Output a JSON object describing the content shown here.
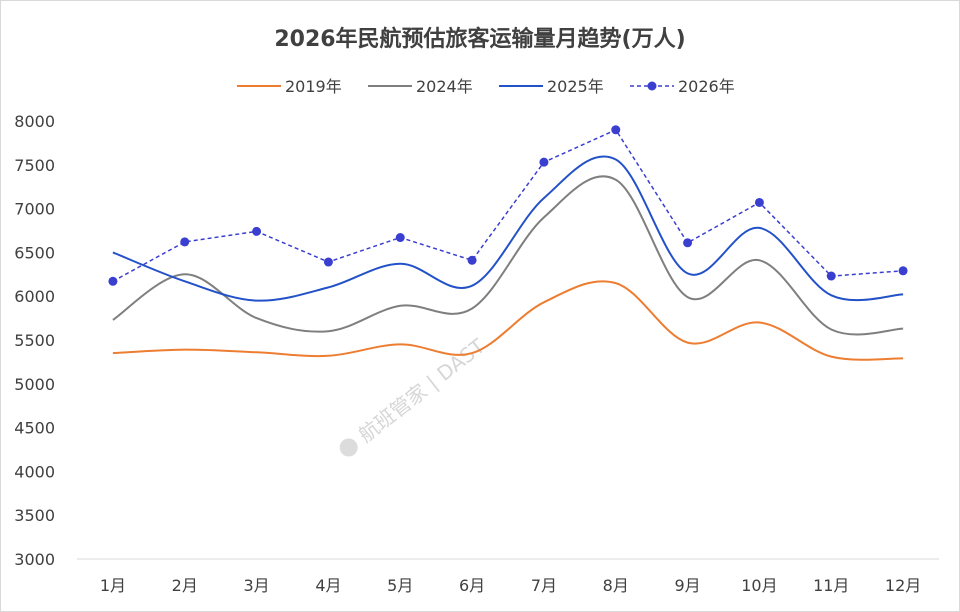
{
  "chart_data": {
    "type": "line",
    "title": "2026年民航预估旅客运输量月趋势(万人)",
    "categories": [
      "1月",
      "2月",
      "3月",
      "4月",
      "5月",
      "6月",
      "7月",
      "8月",
      "9月",
      "10月",
      "11月",
      "12月"
    ],
    "ylim": [
      3000,
      8000
    ],
    "yticks": [
      "8000",
      "7500",
      "7000",
      "6500",
      "6000",
      "5500",
      "5000",
      "4500",
      "4000",
      "3500",
      "3000"
    ],
    "legend_position": "top",
    "series": [
      {
        "name": "2019年",
        "color": "#ed7d31",
        "style": "solid-smooth",
        "values": [
          5350,
          5390,
          5360,
          5320,
          5450,
          5350,
          5930,
          6150,
          5470,
          5700,
          5310,
          5290
        ]
      },
      {
        "name": "2024年",
        "color": "#7f7f7f",
        "style": "solid-smooth",
        "values": [
          5730,
          6250,
          5750,
          5600,
          5890,
          5860,
          6900,
          7330,
          5990,
          6410,
          5620,
          5630
        ]
      },
      {
        "name": "2025年",
        "color": "#2352c8",
        "style": "solid-smooth",
        "values": [
          6500,
          6170,
          5950,
          6100,
          6370,
          6120,
          7120,
          7560,
          6260,
          6780,
          6010,
          6020
        ]
      },
      {
        "name": "2026年",
        "color": "#3a3fd0",
        "style": "dashed-markers",
        "values": [
          6170,
          6620,
          6740,
          6390,
          6670,
          6410,
          7530,
          7900,
          6610,
          7070,
          6230,
          6290
        ]
      }
    ],
    "watermark": "航班管家 | DAST"
  }
}
